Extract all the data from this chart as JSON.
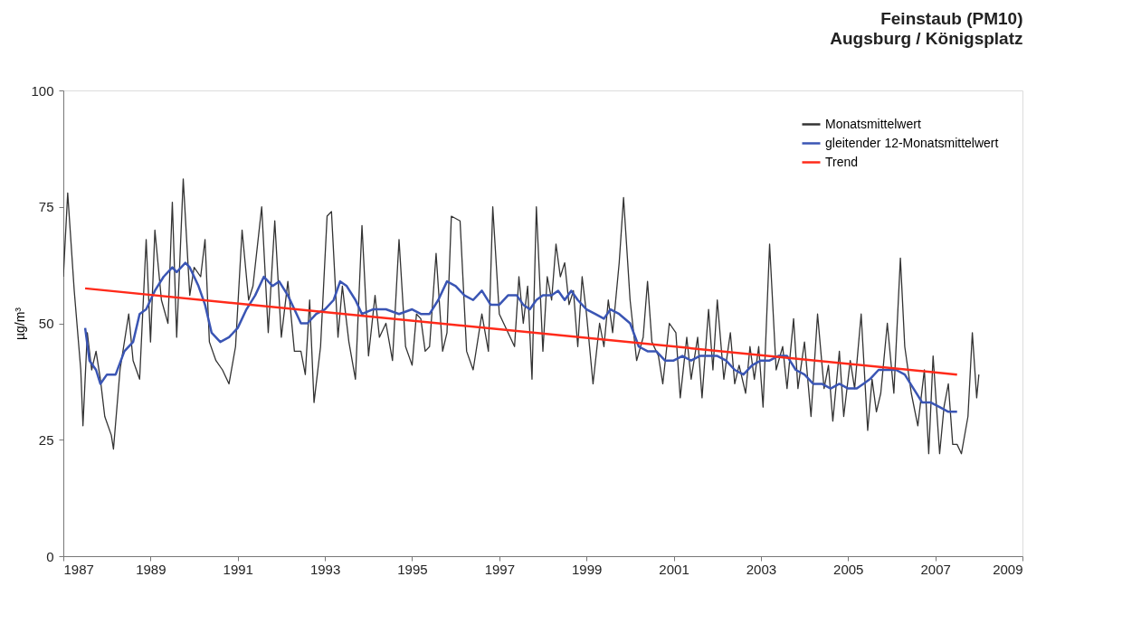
{
  "chart_data": {
    "type": "line",
    "title": "Feinstaub (PM10)",
    "subtitle": "Augsburg / Königsplatz",
    "ylabel": "µg/m³",
    "xlim": [
      1987,
      2009
    ],
    "xticks": [
      1987,
      1989,
      1991,
      1993,
      1995,
      1997,
      1999,
      2001,
      2003,
      2005,
      2007,
      2009
    ],
    "ylim": [
      0,
      100
    ],
    "yticks": [
      0,
      25,
      50,
      75,
      100
    ],
    "grid": false,
    "legend": "top right",
    "marker": "none",
    "line_style": "solid",
    "series": [
      {
        "name": "Monatsmittelwert",
        "color": "#333333",
        "x": [
          1987.0,
          1987.1,
          1987.25,
          1987.4,
          1987.45,
          1987.55,
          1987.65,
          1987.75,
          1987.85,
          1987.95,
          1988.1,
          1988.15,
          1988.3,
          1988.5,
          1988.6,
          1988.75,
          1988.9,
          1989.0,
          1989.1,
          1989.25,
          1989.4,
          1989.5,
          1989.6,
          1989.75,
          1989.9,
          1990.0,
          1990.15,
          1990.25,
          1990.35,
          1990.5,
          1990.65,
          1990.8,
          1990.95,
          1991.1,
          1991.25,
          1991.35,
          1991.55,
          1991.7,
          1991.85,
          1992.0,
          1992.15,
          1992.3,
          1992.45,
          1992.55,
          1992.65,
          1992.75,
          1992.9,
          1993.05,
          1993.15,
          1993.3,
          1993.4,
          1993.55,
          1993.7,
          1993.85,
          1994.0,
          1994.15,
          1994.25,
          1994.4,
          1994.55,
          1994.7,
          1994.85,
          1995.0,
          1995.1,
          1995.2,
          1995.3,
          1995.4,
          1995.55,
          1995.7,
          1995.8,
          1995.9,
          1996.1,
          1996.25,
          1996.4,
          1996.6,
          1996.75,
          1996.85,
          1997.0,
          1997.2,
          1997.35,
          1997.45,
          1997.55,
          1997.65,
          1997.75,
          1997.85,
          1998.0,
          1998.1,
          1998.2,
          1998.3,
          1998.4,
          1998.5,
          1998.6,
          1998.7,
          1998.8,
          1998.9,
          1999.0,
          1999.15,
          1999.3,
          1999.4,
          1999.5,
          1999.6,
          1999.75,
          1999.85,
          2000.0,
          2000.15,
          2000.3,
          2000.4,
          2000.5,
          2000.65,
          2000.75,
          2000.9,
          2001.05,
          2001.15,
          2001.3,
          2001.4,
          2001.55,
          2001.65,
          2001.8,
          2001.9,
          2002.0,
          2002.15,
          2002.3,
          2002.4,
          2002.5,
          2002.65,
          2002.75,
          2002.85,
          2002.95,
          2003.05,
          2003.2,
          2003.35,
          2003.5,
          2003.6,
          2003.75,
          2003.85,
          2004.0,
          2004.15,
          2004.3,
          2004.45,
          2004.55,
          2004.65,
          2004.8,
          2004.9,
          2005.05,
          2005.15,
          2005.3,
          2005.45,
          2005.55,
          2005.65,
          2005.75,
          2005.9,
          2006.05,
          2006.2,
          2006.3,
          2006.45,
          2006.6,
          2006.75,
          2006.85,
          2006.95,
          2007.1,
          2007.2,
          2007.3,
          2007.4,
          2007.5,
          2007.6,
          2007.75,
          2007.85,
          2007.95,
          2008.0
        ],
        "values": [
          60,
          78,
          57,
          40,
          28,
          48,
          40,
          44,
          38,
          30,
          26,
          23,
          40,
          52,
          42,
          38,
          68,
          46,
          70,
          55,
          50,
          76,
          47,
          81,
          56,
          62,
          60,
          68,
          46,
          42,
          40,
          37,
          45,
          70,
          55,
          58,
          75,
          48,
          72,
          47,
          59,
          44,
          44,
          39,
          55,
          33,
          45,
          73,
          74,
          47,
          58,
          46,
          38,
          71,
          43,
          56,
          47,
          50,
          42,
          68,
          45,
          41,
          52,
          51,
          44,
          45,
          65,
          44,
          48,
          73,
          72,
          44,
          40,
          52,
          44,
          75,
          52,
          48,
          45,
          60,
          50,
          58,
          38,
          75,
          44,
          60,
          55,
          67,
          60,
          63,
          54,
          57,
          45,
          60,
          52,
          37,
          50,
          45,
          55,
          48,
          63,
          77,
          55,
          42,
          47,
          59,
          46,
          43,
          37,
          50,
          48,
          34,
          47,
          38,
          47,
          34,
          53,
          40,
          55,
          38,
          48,
          37,
          41,
          35,
          45,
          38,
          45,
          32,
          67,
          40,
          45,
          36,
          51,
          36,
          46,
          30,
          52,
          36,
          41,
          29,
          44,
          30,
          42,
          36,
          52,
          27,
          38,
          31,
          35,
          50,
          35,
          64,
          45,
          35,
          28,
          40,
          22,
          43,
          22,
          32,
          37,
          24,
          24,
          22,
          30,
          48,
          34,
          39
        ]
      },
      {
        "name": "gleitender 12-Monatsmittelwert",
        "color": "#3a55b4",
        "x": [
          1987.5,
          1987.6,
          1987.75,
          1987.85,
          1988.0,
          1988.2,
          1988.4,
          1988.6,
          1988.75,
          1988.9,
          1989.1,
          1989.3,
          1989.5,
          1989.6,
          1989.8,
          1989.9,
          1990.1,
          1990.25,
          1990.4,
          1990.6,
          1990.8,
          1991.0,
          1991.2,
          1991.4,
          1991.6,
          1991.8,
          1991.95,
          1992.15,
          1992.3,
          1992.45,
          1992.6,
          1992.8,
          1993.0,
          1993.2,
          1993.35,
          1993.5,
          1993.7,
          1993.85,
          1994.1,
          1994.4,
          1994.7,
          1995.0,
          1995.2,
          1995.4,
          1995.6,
          1995.8,
          1996.0,
          1996.2,
          1996.4,
          1996.6,
          1996.8,
          1997.0,
          1997.2,
          1997.4,
          1997.55,
          1997.7,
          1997.85,
          1998.0,
          1998.2,
          1998.35,
          1998.5,
          1998.65,
          1998.8,
          1999.0,
          1999.2,
          1999.4,
          1999.55,
          1999.75,
          2000.0,
          2000.2,
          2000.4,
          2000.6,
          2000.8,
          2001.0,
          2001.2,
          2001.4,
          2001.6,
          2001.8,
          2002.0,
          2002.2,
          2002.4,
          2002.6,
          2002.8,
          2003.0,
          2003.2,
          2003.4,
          2003.6,
          2003.8,
          2004.0,
          2004.2,
          2004.4,
          2004.6,
          2004.8,
          2005.0,
          2005.2,
          2005.35,
          2005.5,
          2005.7,
          2005.9,
          2006.1,
          2006.3,
          2006.5,
          2006.7,
          2006.9,
          2007.1,
          2007.3,
          2007.5
        ],
        "values": [
          49,
          42,
          40,
          37,
          39,
          39,
          44,
          46,
          52,
          53,
          57,
          60,
          62,
          61,
          63,
          62,
          58,
          54,
          48,
          46,
          47,
          49,
          53,
          56,
          60,
          58,
          59,
          56,
          53,
          50,
          50,
          52,
          53,
          55,
          59,
          58,
          55,
          52,
          53,
          53,
          52,
          53,
          52,
          52,
          55,
          59,
          58,
          56,
          55,
          57,
          54,
          54,
          56,
          56,
          54,
          53,
          55,
          56,
          56,
          57,
          55,
          57,
          55,
          53,
          52,
          51,
          53,
          52,
          50,
          45,
          44,
          44,
          42,
          42,
          43,
          42,
          43,
          43,
          43,
          42,
          40,
          39,
          41,
          42,
          42,
          43,
          43,
          40,
          39,
          37,
          37,
          36,
          37,
          36,
          36,
          37,
          38,
          40,
          40,
          40,
          39,
          36,
          33,
          33,
          32,
          31,
          31
        ]
      },
      {
        "name": "Trend",
        "color": "#ff2a1a",
        "x": [
          1987.5,
          2007.5
        ],
        "values": [
          57.5,
          39
        ]
      }
    ]
  }
}
